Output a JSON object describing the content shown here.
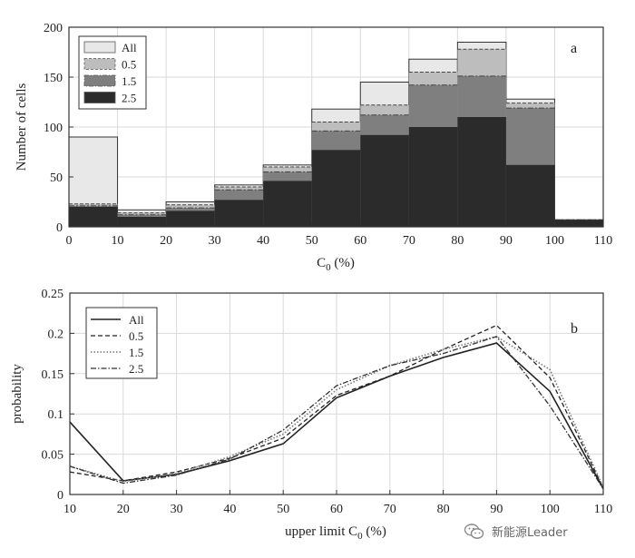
{
  "chart_data": [
    {
      "type": "bar",
      "subtype": "stacked-overlap histogram",
      "panel_label": "a",
      "xlabel_main": "C",
      "xlabel_sub": "0",
      "xlabel_unit": "(%)",
      "ylabel": "Number of cells",
      "xlim": [
        0,
        110
      ],
      "ylim": [
        0,
        200
      ],
      "xticks": [
        0,
        10,
        20,
        30,
        40,
        50,
        60,
        70,
        80,
        90,
        100,
        110
      ],
      "yticks": [
        0,
        50,
        100,
        150,
        200
      ],
      "grid": true,
      "legend_position": "top-left",
      "bins": [
        [
          0,
          10
        ],
        [
          10,
          20
        ],
        [
          20,
          30
        ],
        [
          30,
          40
        ],
        [
          40,
          50
        ],
        [
          50,
          60
        ],
        [
          60,
          70
        ],
        [
          70,
          80
        ],
        [
          80,
          90
        ],
        [
          90,
          100
        ],
        [
          100,
          110
        ]
      ],
      "series": [
        {
          "name": "All",
          "values": [
            90,
            17,
            25,
            42,
            62,
            118,
            145,
            168,
            185,
            128,
            7
          ],
          "color": "#e8e8e8"
        },
        {
          "name": "0.5",
          "values": [
            23,
            14,
            22,
            40,
            60,
            105,
            122,
            155,
            178,
            124,
            7
          ],
          "color": "#bdbdbd"
        },
        {
          "name": "1.5",
          "values": [
            21,
            12,
            19,
            37,
            55,
            96,
            112,
            142,
            151,
            119,
            7
          ],
          "color": "#7f7f7f"
        },
        {
          "name": "2.5",
          "values": [
            20,
            10,
            16,
            27,
            46,
            77,
            92,
            100,
            110,
            62,
            7
          ],
          "color": "#2b2b2b"
        }
      ]
    },
    {
      "type": "line",
      "panel_label": "b",
      "xlabel_main": "upper limit C",
      "xlabel_sub": "0",
      "xlabel_unit": "(%)",
      "ylabel": "probability",
      "xlim": [
        10,
        110
      ],
      "ylim": [
        0,
        0.25
      ],
      "xticks": [
        10,
        20,
        30,
        40,
        50,
        60,
        70,
        80,
        90,
        100,
        110
      ],
      "yticks": [
        0,
        0.05,
        0.1,
        0.15,
        0.2,
        0.25
      ],
      "ytick_labels": [
        "0",
        "0.05",
        "0.1",
        "0.15",
        "0.2",
        "0.25"
      ],
      "grid": true,
      "legend_position": "top-left",
      "x": [
        10,
        20,
        30,
        40,
        50,
        60,
        70,
        80,
        90,
        100,
        110
      ],
      "series": [
        {
          "name": "All",
          "style": "solid",
          "values": [
            0.09,
            0.017,
            0.025,
            0.042,
            0.063,
            0.12,
            0.147,
            0.17,
            0.188,
            0.128,
            0.007
          ]
        },
        {
          "name": "0.5",
          "style": "dashed",
          "values": [
            0.028,
            0.017,
            0.028,
            0.045,
            0.07,
            0.123,
            0.147,
            0.18,
            0.21,
            0.145,
            0.008
          ]
        },
        {
          "name": "1.5",
          "style": "dotted",
          "values": [
            0.035,
            0.016,
            0.026,
            0.047,
            0.075,
            0.13,
            0.16,
            0.18,
            0.196,
            0.155,
            0.009
          ]
        },
        {
          "name": "2.5",
          "style": "dashdot",
          "values": [
            0.035,
            0.014,
            0.024,
            0.044,
            0.08,
            0.135,
            0.16,
            0.175,
            0.196,
            0.11,
            0.007
          ]
        }
      ]
    }
  ],
  "watermark": {
    "text": "新能源Leader",
    "icon": "wechat-icon"
  }
}
